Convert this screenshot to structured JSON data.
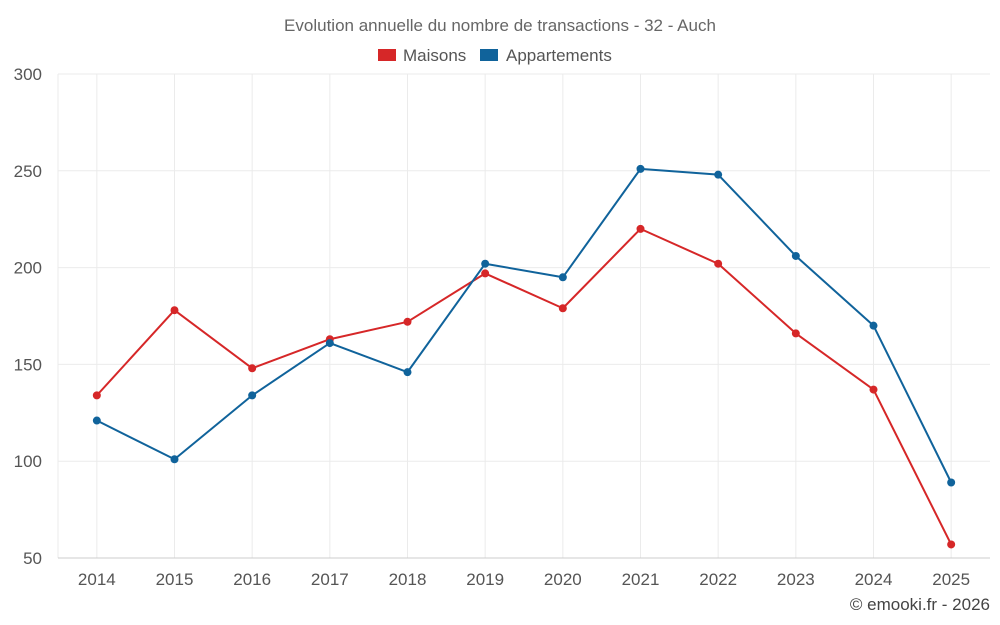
{
  "chart_data": {
    "type": "line",
    "title": "Evolution annuelle du nombre de transactions - 32 - Auch",
    "categories": [
      "2014",
      "2015",
      "2016",
      "2017",
      "2018",
      "2019",
      "2020",
      "2021",
      "2022",
      "2023",
      "2024",
      "2025"
    ],
    "series": [
      {
        "name": "Maisons",
        "color": "#d62728",
        "values": [
          134,
          178,
          148,
          163,
          172,
          197,
          179,
          220,
          202,
          166,
          137,
          57
        ]
      },
      {
        "name": "Appartements",
        "color": "#10639b",
        "values": [
          121,
          101,
          134,
          161,
          146,
          202,
          195,
          251,
          248,
          206,
          170,
          89
        ]
      }
    ],
    "ylim": [
      50,
      300
    ],
    "yticks": [
      50,
      100,
      150,
      200,
      250,
      300
    ],
    "xlabel": "",
    "ylabel": "",
    "grid": true,
    "legend_position": "top-center"
  },
  "credit": "© emooki.fr - 2026"
}
